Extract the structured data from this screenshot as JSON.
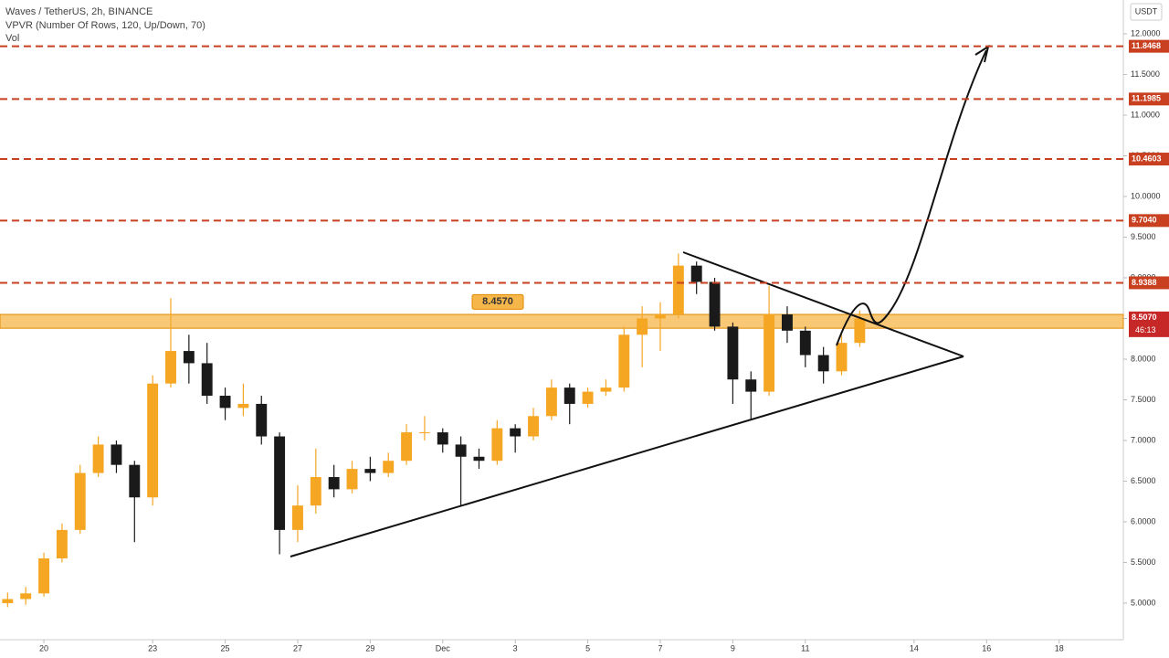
{
  "chart_data": {
    "type": "candlestick",
    "title": "Waves / TetherUS, 2h, BINANCE",
    "indicators": [
      "VPVR (Number Of Rows, 120, Up/Down, 70)",
      "Vol"
    ],
    "currency": "USDT",
    "up_color": "#f5a623",
    "down_color": "#1a1a1a",
    "level_color": "#c8401f",
    "zone_color": "#f7b64a",
    "grid": false,
    "xlim": [
      18.79,
      49.77
    ],
    "ylim": [
      4.55,
      12.416
    ],
    "xticks": [
      20,
      23,
      25,
      27,
      29,
      {
        "value": 31,
        "label": "Dec"
      },
      {
        "value": 33,
        "label": "3"
      },
      {
        "value": 35,
        "label": "5"
      },
      {
        "value": 37,
        "label": "7"
      },
      {
        "value": 39,
        "label": "9"
      },
      {
        "value": 41,
        "label": "11"
      },
      {
        "value": 44,
        "label": "14"
      },
      {
        "value": 46,
        "label": "16"
      },
      {
        "value": 48,
        "label": "18"
      }
    ],
    "yticks": [
      {
        "value": 5,
        "label": "5.0000"
      },
      {
        "value": 5.5,
        "label": "5.5000"
      },
      {
        "value": 6,
        "label": "6.0000"
      },
      {
        "value": 6.5,
        "label": "6.5000"
      },
      {
        "value": 7,
        "label": "7.0000"
      },
      {
        "value": 7.5,
        "label": "7.5000"
      },
      {
        "value": 8,
        "label": "8.0000"
      },
      {
        "value": 8.5,
        "label": "8.5000"
      },
      {
        "value": 9,
        "label": "9.0000"
      },
      {
        "value": 9.5,
        "label": "9.5000"
      },
      {
        "value": 10,
        "label": "10.0000"
      },
      {
        "value": 10.5,
        "label": "10.5000"
      },
      {
        "value": 11,
        "label": "11.0000"
      },
      {
        "value": 11.5,
        "label": "11.5000"
      },
      {
        "value": 12,
        "label": "12.0000"
      }
    ],
    "x": [
      19,
      19.5,
      20,
      20.5,
      21,
      21.5,
      22,
      22.5,
      23,
      23.5,
      24,
      24.5,
      25,
      25.5,
      26,
      26.5,
      27,
      27.5,
      28,
      28.5,
      29,
      29.5,
      30,
      30.5,
      31,
      31.5,
      32,
      32.5,
      33,
      33.5,
      34,
      34.5,
      35,
      35.5,
      36,
      36.5,
      37,
      37.5,
      38,
      38.5,
      39,
      39.5,
      40,
      40.5,
      41,
      41.5,
      42,
      42.5
    ],
    "open": [
      5.0,
      5.05,
      5.12,
      5.55,
      5.9,
      6.6,
      6.95,
      6.7,
      6.3,
      7.7,
      8.1,
      7.95,
      7.55,
      7.4,
      7.45,
      7.05,
      5.9,
      6.2,
      6.55,
      6.4,
      6.65,
      6.6,
      6.75,
      7.1,
      7.1,
      6.95,
      6.8,
      6.75,
      7.15,
      7.05,
      7.3,
      7.65,
      7.45,
      7.6,
      7.65,
      8.3,
      8.5,
      8.55,
      9.15,
      8.95,
      8.4,
      7.75,
      7.6,
      8.55,
      8.35,
      8.05,
      7.85,
      8.2
    ],
    "high": [
      5.13,
      5.2,
      5.62,
      5.98,
      6.7,
      7.05,
      7.0,
      6.75,
      7.8,
      8.75,
      8.3,
      8.2,
      7.65,
      7.7,
      7.55,
      7.1,
      6.45,
      6.9,
      6.7,
      6.75,
      6.8,
      6.85,
      7.2,
      7.3,
      7.15,
      7.05,
      6.9,
      7.25,
      7.2,
      7.4,
      7.75,
      7.7,
      7.65,
      7.75,
      8.4,
      8.65,
      8.7,
      9.3,
      9.2,
      9.0,
      8.45,
      7.85,
      8.9,
      8.65,
      8.4,
      8.15,
      8.3,
      8.6
    ],
    "low": [
      4.95,
      4.98,
      5.08,
      5.5,
      5.85,
      6.55,
      6.6,
      5.75,
      6.2,
      7.65,
      7.7,
      7.45,
      7.25,
      7.3,
      6.95,
      5.6,
      5.75,
      6.1,
      6.3,
      6.35,
      6.5,
      6.55,
      6.7,
      7.0,
      6.85,
      6.2,
      6.65,
      6.7,
      6.85,
      7.0,
      7.25,
      7.2,
      7.4,
      7.55,
      7.6,
      7.9,
      8.1,
      8.5,
      8.8,
      8.35,
      7.45,
      7.25,
      7.55,
      8.2,
      7.9,
      7.7,
      7.8,
      8.15
    ],
    "close": [
      5.05,
      5.12,
      5.55,
      5.9,
      6.6,
      6.95,
      6.7,
      6.3,
      7.7,
      8.1,
      7.95,
      7.55,
      7.4,
      7.45,
      7.05,
      5.9,
      6.2,
      6.55,
      6.4,
      6.65,
      6.6,
      6.75,
      7.1,
      7.1,
      6.95,
      6.8,
      6.75,
      7.15,
      7.05,
      7.3,
      7.65,
      7.45,
      7.6,
      7.65,
      8.3,
      8.5,
      8.55,
      9.15,
      8.95,
      8.4,
      7.75,
      7.6,
      8.55,
      8.35,
      8.05,
      7.85,
      8.2,
      8.5
    ],
    "levels": [
      {
        "value": 11.8468,
        "label": "11.8468"
      },
      {
        "value": 11.1985,
        "label": "11.1985"
      },
      {
        "value": 10.4603,
        "label": "10.4603"
      },
      {
        "value": 9.704,
        "label": "9.7040"
      },
      {
        "value": 8.9388,
        "label": "8.9388"
      }
    ],
    "zone": {
      "low": 8.38,
      "high": 8.55,
      "annotation": {
        "value": 8.457,
        "label": "8.4570"
      }
    },
    "last_price": {
      "value": 8.507,
      "label": "8.5070",
      "countdown": "46:13"
    }
  }
}
